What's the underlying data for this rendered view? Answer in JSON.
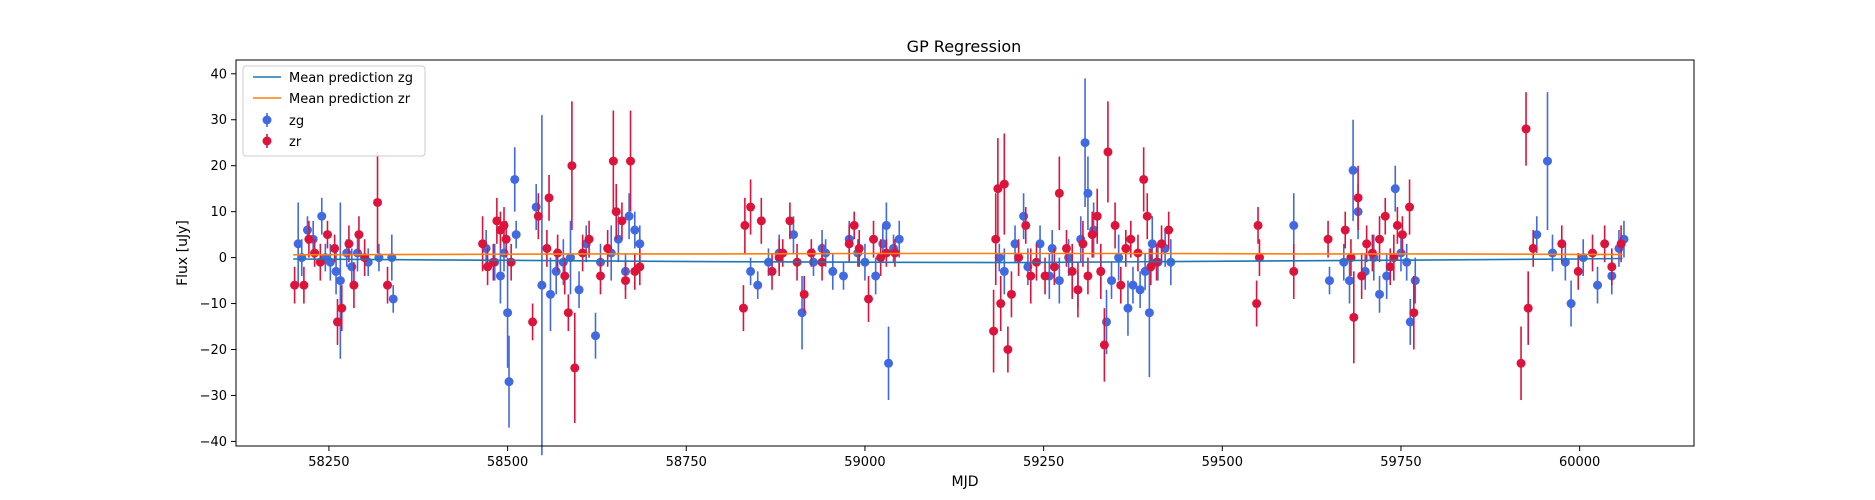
{
  "chart_data": {
    "type": "scatter",
    "title": "GP Regression",
    "xlabel": "MJD",
    "ylabel": "Flux [uJy]",
    "xlim": [
      58120,
      60160
    ],
    "ylim": [
      -41,
      43
    ],
    "xticks": [
      58250,
      58500,
      58750,
      59000,
      59250,
      59500,
      59750,
      60000
    ],
    "yticks": [
      -40,
      -30,
      -20,
      -10,
      0,
      10,
      20,
      30,
      40
    ],
    "grid": false,
    "legend_position": "top-left",
    "legend": [
      "Mean prediction zg",
      "Mean prediction zr",
      "zg",
      "zr"
    ],
    "mean_predictions": [
      {
        "name": "Mean prediction zg",
        "color": "#1f77b4",
        "x": [
          58200,
          58400,
          58600,
          58800,
          59000,
          59200,
          59400,
          59600,
          59800,
          60000,
          60060
        ],
        "y": [
          -0.3,
          -0.5,
          -0.7,
          -0.9,
          -1.0,
          -1.1,
          -0.9,
          -0.7,
          -0.5,
          -0.3,
          -0.2
        ]
      },
      {
        "name": "Mean prediction zr",
        "color": "#ff7f0e",
        "x": [
          58200,
          58400,
          58600,
          58800,
          59000,
          59200,
          59400,
          59600,
          59800,
          60000,
          60060
        ],
        "y": [
          0.6,
          0.7,
          0.8,
          0.8,
          0.9,
          0.9,
          0.9,
          0.8,
          0.8,
          0.7,
          0.7
        ]
      }
    ],
    "series": [
      {
        "name": "zg",
        "color": "#4169e1",
        "points": [
          [
            58207,
            3,
            9
          ],
          [
            58212,
            0,
            4
          ],
          [
            58220,
            6,
            3
          ],
          [
            58228,
            4,
            4
          ],
          [
            58240,
            9,
            4
          ],
          [
            58245,
            0,
            3
          ],
          [
            58252,
            -1,
            4
          ],
          [
            58260,
            -3,
            5
          ],
          [
            58266,
            -5,
            17
          ],
          [
            58275,
            1,
            3
          ],
          [
            58282,
            -2,
            4
          ],
          [
            58290,
            1,
            4
          ],
          [
            58305,
            -1,
            3
          ],
          [
            58320,
            0,
            3
          ],
          [
            58338,
            0,
            5
          ],
          [
            58340,
            -9,
            3
          ],
          [
            58470,
            2,
            4
          ],
          [
            58482,
            -1,
            4
          ],
          [
            58490,
            -4,
            6
          ],
          [
            58495,
            1,
            4
          ],
          [
            58500,
            -12,
            12
          ],
          [
            58502,
            -27,
            10
          ],
          [
            58510,
            17,
            7
          ],
          [
            58512,
            5,
            3
          ],
          [
            58540,
            11,
            5
          ],
          [
            58548,
            -6,
            37
          ],
          [
            58560,
            -8,
            8
          ],
          [
            58568,
            -3,
            5
          ],
          [
            58578,
            -1,
            5
          ],
          [
            58588,
            0,
            8
          ],
          [
            58600,
            -7,
            4
          ],
          [
            58610,
            3,
            4
          ],
          [
            58623,
            -17,
            5
          ],
          [
            58630,
            -1,
            4
          ],
          [
            58645,
            1,
            6
          ],
          [
            58655,
            4,
            5
          ],
          [
            58665,
            -3,
            4
          ],
          [
            58670,
            9,
            5
          ],
          [
            58678,
            6,
            4
          ],
          [
            58685,
            3,
            4
          ],
          [
            58840,
            -3,
            3
          ],
          [
            58850,
            -6,
            3
          ],
          [
            58865,
            -1,
            3
          ],
          [
            58880,
            1,
            4
          ],
          [
            58900,
            5,
            4
          ],
          [
            58912,
            -12,
            8
          ],
          [
            58928,
            -1,
            3
          ],
          [
            58940,
            2,
            4
          ],
          [
            58945,
            1,
            3
          ],
          [
            58955,
            -3,
            4
          ],
          [
            58970,
            -4,
            3
          ],
          [
            58978,
            4,
            4
          ],
          [
            58990,
            1,
            3
          ],
          [
            59000,
            -1,
            4
          ],
          [
            59015,
            -4,
            4
          ],
          [
            59025,
            3,
            4
          ],
          [
            59030,
            7,
            5
          ],
          [
            59033,
            -23,
            8
          ],
          [
            59040,
            2,
            3
          ],
          [
            59048,
            4,
            4
          ],
          [
            59188,
            0,
            3
          ],
          [
            59195,
            -3,
            5
          ],
          [
            59210,
            3,
            4
          ],
          [
            59222,
            9,
            5
          ],
          [
            59228,
            -2,
            4
          ],
          [
            59245,
            3,
            4
          ],
          [
            59258,
            -4,
            5
          ],
          [
            59262,
            2,
            4
          ],
          [
            59272,
            -5,
            5
          ],
          [
            59285,
            0,
            4
          ],
          [
            59298,
            -7,
            4
          ],
          [
            59302,
            4,
            5
          ],
          [
            59308,
            25,
            14
          ],
          [
            59312,
            14,
            8
          ],
          [
            59320,
            6,
            6
          ],
          [
            59330,
            -3,
            4
          ],
          [
            59338,
            -14,
            7
          ],
          [
            59345,
            -5,
            4
          ],
          [
            59355,
            0,
            5
          ],
          [
            59368,
            -11,
            6
          ],
          [
            59375,
            -6,
            4
          ],
          [
            59385,
            -7,
            4
          ],
          [
            59392,
            -3,
            4
          ],
          [
            59398,
            -12,
            14
          ],
          [
            59402,
            3,
            6
          ],
          [
            59410,
            -1,
            4
          ],
          [
            59420,
            2,
            4
          ],
          [
            59428,
            -1,
            5
          ],
          [
            59600,
            7,
            7
          ],
          [
            59650,
            -5,
            3
          ],
          [
            59670,
            -1,
            4
          ],
          [
            59678,
            -5,
            5
          ],
          [
            59683,
            19,
            11
          ],
          [
            59690,
            10,
            6
          ],
          [
            59700,
            -3,
            4
          ],
          [
            59712,
            0,
            5
          ],
          [
            59720,
            -8,
            4
          ],
          [
            59730,
            -4,
            5
          ],
          [
            59742,
            15,
            5
          ],
          [
            59750,
            1,
            4
          ],
          [
            59758,
            -1,
            4
          ],
          [
            59763,
            -14,
            5
          ],
          [
            59770,
            -5,
            5
          ],
          [
            59940,
            5,
            4
          ],
          [
            59955,
            21,
            15
          ],
          [
            59962,
            1,
            4
          ],
          [
            59980,
            -1,
            4
          ],
          [
            59988,
            -10,
            5
          ],
          [
            60005,
            0,
            4
          ],
          [
            60025,
            -6,
            4
          ],
          [
            60045,
            -4,
            4
          ],
          [
            60055,
            2,
            4
          ],
          [
            60062,
            4,
            4
          ]
        ]
      },
      {
        "name": "zr",
        "color": "#dc143c",
        "points": [
          [
            58202,
            -6,
            4
          ],
          [
            58215,
            -6,
            4
          ],
          [
            58222,
            4,
            4
          ],
          [
            58230,
            1,
            3
          ],
          [
            58238,
            -1,
            4
          ],
          [
            58248,
            5,
            3
          ],
          [
            58258,
            2,
            3
          ],
          [
            58262,
            -14,
            5
          ],
          [
            58268,
            -11,
            5
          ],
          [
            58278,
            3,
            4
          ],
          [
            58285,
            -6,
            5
          ],
          [
            58292,
            5,
            4
          ],
          [
            58300,
            0,
            4
          ],
          [
            58318,
            12,
            11
          ],
          [
            58332,
            -6,
            4
          ],
          [
            58465,
            3,
            6
          ],
          [
            58472,
            -2,
            4
          ],
          [
            58480,
            -1,
            4
          ],
          [
            58485,
            8,
            5
          ],
          [
            58490,
            6,
            4
          ],
          [
            58495,
            7,
            4
          ],
          [
            58498,
            4,
            4
          ],
          [
            58505,
            -1,
            4
          ],
          [
            58535,
            -14,
            4
          ],
          [
            58543,
            9,
            5
          ],
          [
            58555,
            2,
            4
          ],
          [
            58558,
            13,
            5
          ],
          [
            58570,
            1,
            4
          ],
          [
            58580,
            -4,
            4
          ],
          [
            58585,
            -12,
            4
          ],
          [
            58590,
            20,
            14
          ],
          [
            58594,
            -24,
            12
          ],
          [
            58605,
            1,
            4
          ],
          [
            58614,
            4,
            4
          ],
          [
            58630,
            -4,
            4
          ],
          [
            58640,
            2,
            4
          ],
          [
            58648,
            21,
            11
          ],
          [
            58652,
            10,
            6
          ],
          [
            58660,
            8,
            4
          ],
          [
            58665,
            -5,
            4
          ],
          [
            58672,
            21,
            11
          ],
          [
            58678,
            -3,
            4
          ],
          [
            58685,
            -2,
            4
          ],
          [
            58830,
            -11,
            5
          ],
          [
            58832,
            7,
            6
          ],
          [
            58840,
            11,
            6
          ],
          [
            58855,
            8,
            5
          ],
          [
            58870,
            -3,
            4
          ],
          [
            58880,
            0,
            4
          ],
          [
            58885,
            1,
            3
          ],
          [
            58895,
            8,
            4
          ],
          [
            58905,
            -1,
            4
          ],
          [
            58915,
            -8,
            4
          ],
          [
            58925,
            1,
            3
          ],
          [
            58940,
            -1,
            4
          ],
          [
            58978,
            3,
            4
          ],
          [
            58985,
            7,
            3
          ],
          [
            58992,
            2,
            4
          ],
          [
            59005,
            -9,
            5
          ],
          [
            59012,
            4,
            4
          ],
          [
            59022,
            0,
            4
          ],
          [
            59030,
            1,
            3
          ],
          [
            59042,
            1,
            3
          ],
          [
            59180,
            -16,
            9
          ],
          [
            59183,
            4,
            10
          ],
          [
            59186,
            15,
            11
          ],
          [
            59190,
            -10,
            6
          ],
          [
            59195,
            16,
            11
          ],
          [
            59200,
            -20,
            5
          ],
          [
            59205,
            -8,
            5
          ],
          [
            59215,
            0,
            4
          ],
          [
            59225,
            7,
            4
          ],
          [
            59232,
            -4,
            6
          ],
          [
            59240,
            -1,
            4
          ],
          [
            59252,
            -4,
            4
          ],
          [
            59265,
            -2,
            4
          ],
          [
            59272,
            14,
            8
          ],
          [
            59282,
            2,
            4
          ],
          [
            59290,
            -3,
            6
          ],
          [
            59298,
            -7,
            6
          ],
          [
            59305,
            3,
            5
          ],
          [
            59312,
            -4,
            4
          ],
          [
            59318,
            5,
            5
          ],
          [
            59325,
            9,
            6
          ],
          [
            59330,
            -3,
            6
          ],
          [
            59335,
            -19,
            8
          ],
          [
            59340,
            23,
            11
          ],
          [
            59350,
            7,
            5
          ],
          [
            59358,
            -6,
            4
          ],
          [
            59365,
            2,
            4
          ],
          [
            59372,
            4,
            4
          ],
          [
            59382,
            1,
            4
          ],
          [
            59390,
            17,
            7
          ],
          [
            59395,
            9,
            5
          ],
          [
            59400,
            -2,
            4
          ],
          [
            59408,
            -1,
            4
          ],
          [
            59415,
            3,
            4
          ],
          [
            59425,
            6,
            4
          ],
          [
            59548,
            -10,
            5
          ],
          [
            59550,
            7,
            4
          ],
          [
            59552,
            0,
            4
          ],
          [
            59600,
            -3,
            6
          ],
          [
            59648,
            4,
            4
          ],
          [
            59672,
            6,
            4
          ],
          [
            59680,
            0,
            4
          ],
          [
            59684,
            -13,
            10
          ],
          [
            59690,
            13,
            7
          ],
          [
            59695,
            -4,
            5
          ],
          [
            59702,
            3,
            4
          ],
          [
            59710,
            1,
            4
          ],
          [
            59720,
            4,
            5
          ],
          [
            59728,
            9,
            4
          ],
          [
            59735,
            -2,
            4
          ],
          [
            59740,
            0,
            5
          ],
          [
            59745,
            7,
            4
          ],
          [
            59752,
            5,
            4
          ],
          [
            59762,
            11,
            6
          ],
          [
            59768,
            -12,
            8
          ],
          [
            59918,
            -23,
            8
          ],
          [
            59925,
            28,
            8
          ],
          [
            59928,
            -11,
            8
          ],
          [
            59935,
            2,
            4
          ],
          [
            59975,
            3,
            4
          ],
          [
            59998,
            -3,
            4
          ],
          [
            60018,
            1,
            4
          ],
          [
            60035,
            3,
            4
          ],
          [
            60045,
            -2,
            4
          ],
          [
            60058,
            3,
            4
          ]
        ]
      }
    ]
  }
}
